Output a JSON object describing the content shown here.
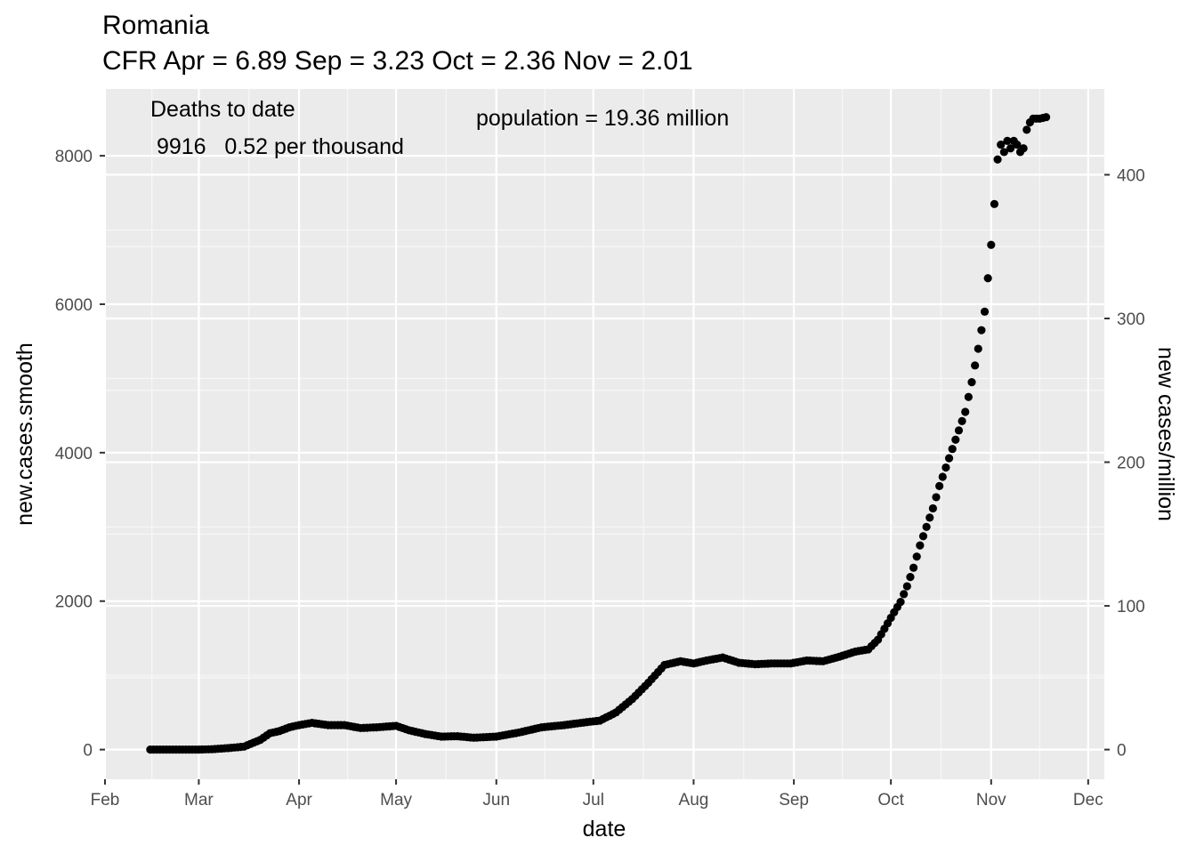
{
  "chart_data": {
    "type": "scatter",
    "title": "Romania",
    "subtitle": "CFR Apr = 6.89  Sep = 3.23  Oct = 2.36  Nov = 2.01",
    "xlabel": "date",
    "ylabel": "new.cases.smooth",
    "ylabel_right": "new cases/million",
    "x_ticks": [
      "Feb",
      "Mar",
      "Apr",
      "May",
      "Jun",
      "Jul",
      "Aug",
      "Sep",
      "Oct",
      "Nov",
      "Dec"
    ],
    "y_ticks": [
      "0",
      "2000",
      "4000",
      "6000",
      "8000"
    ],
    "y2_ticks": [
      "0",
      "100",
      "200",
      "300",
      "400"
    ],
    "ylim": [
      -400,
      8900
    ],
    "xlim": [
      "2020-02-01",
      "2020-12-06"
    ],
    "grid": true,
    "annotations": {
      "deaths_label": "Deaths to date",
      "deaths_value": " 9916   0.52 per thousand",
      "population": "population = 19.36 million"
    },
    "series": [
      {
        "x": [
          "2020-02-15",
          "2020-02-20",
          "2020-02-25",
          "2020-03-01",
          "2020-03-05",
          "2020-03-10",
          "2020-03-15",
          "2020-03-20",
          "2020-03-23",
          "2020-03-26",
          "2020-03-29",
          "2020-04-01",
          "2020-04-05",
          "2020-04-10",
          "2020-04-15",
          "2020-04-20",
          "2020-04-25",
          "2020-05-01",
          "2020-05-05",
          "2020-05-10",
          "2020-05-15",
          "2020-05-20",
          "2020-05-25",
          "2020-06-01",
          "2020-06-08",
          "2020-06-15",
          "2020-06-22",
          "2020-06-29",
          "2020-07-03",
          "2020-07-08",
          "2020-07-13",
          "2020-07-18",
          "2020-07-23",
          "2020-07-28",
          "2020-08-01",
          "2020-08-05",
          "2020-08-10",
          "2020-08-15",
          "2020-08-20",
          "2020-08-25",
          "2020-08-31",
          "2020-09-05",
          "2020-09-10",
          "2020-09-15",
          "2020-09-20",
          "2020-09-24",
          "2020-09-27",
          "2020-09-30",
          "2020-10-02",
          "2020-10-04",
          "2020-10-06",
          "2020-10-08",
          "2020-10-10",
          "2020-10-12",
          "2020-10-14",
          "2020-10-16",
          "2020-10-18",
          "2020-10-20",
          "2020-10-22",
          "2020-10-24",
          "2020-10-26",
          "2020-10-28",
          "2020-10-30",
          "2020-10-31",
          "2020-11-01",
          "2020-11-02",
          "2020-11-03",
          "2020-11-04",
          "2020-11-05",
          "2020-11-06",
          "2020-11-07",
          "2020-11-08",
          "2020-11-09",
          "2020-11-10",
          "2020-11-11",
          "2020-11-12",
          "2020-11-13",
          "2020-11-14",
          "2020-11-15",
          "2020-11-16",
          "2020-11-17",
          "2020-11-18"
        ],
        "y": [
          0,
          0,
          0,
          0,
          5,
          20,
          40,
          130,
          220,
          250,
          300,
          330,
          360,
          330,
          330,
          290,
          300,
          320,
          260,
          210,
          175,
          180,
          160,
          175,
          230,
          300,
          330,
          370,
          390,
          500,
          680,
          900,
          1140,
          1190,
          1160,
          1200,
          1240,
          1170,
          1150,
          1160,
          1160,
          1200,
          1190,
          1250,
          1320,
          1350,
          1480,
          1700,
          1850,
          1990,
          2200,
          2450,
          2750,
          3000,
          3250,
          3550,
          3800,
          4050,
          4300,
          4550,
          4950,
          5400,
          5900,
          6350,
          6800,
          7350,
          7950,
          8150,
          8050,
          8200,
          8100,
          8200,
          8150,
          8050,
          8100,
          8350,
          8450,
          8500,
          8500,
          8500,
          8510,
          8520
        ]
      }
    ]
  }
}
